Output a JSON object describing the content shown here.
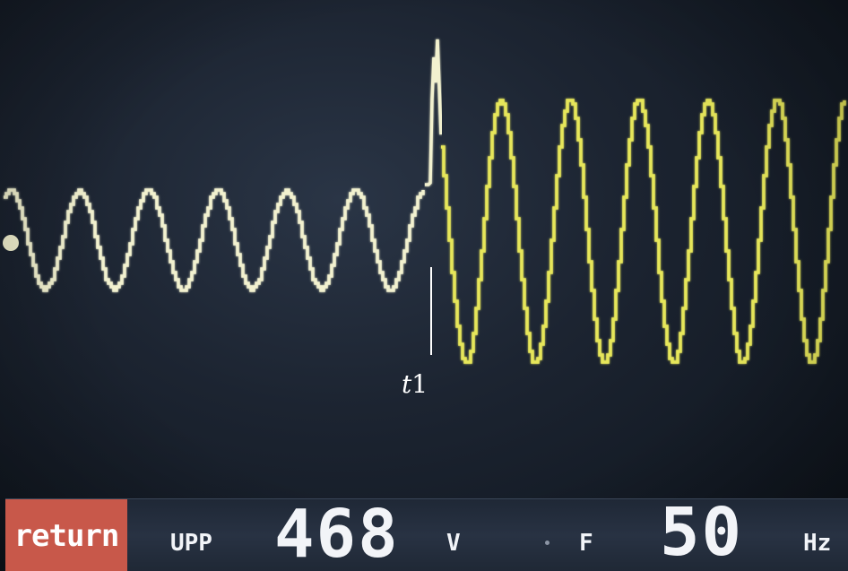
{
  "waveform": {
    "color_before": "#f2f1cf",
    "color_after": "#e6e65a",
    "marker_label_italic": "t",
    "marker_label_num": "1"
  },
  "status_bar": {
    "return_label": "return",
    "upp_label": "UPP",
    "upp_value": "468",
    "upp_unit": "V",
    "f_label": "F",
    "f_value": "50",
    "f_unit": "Hz"
  }
}
